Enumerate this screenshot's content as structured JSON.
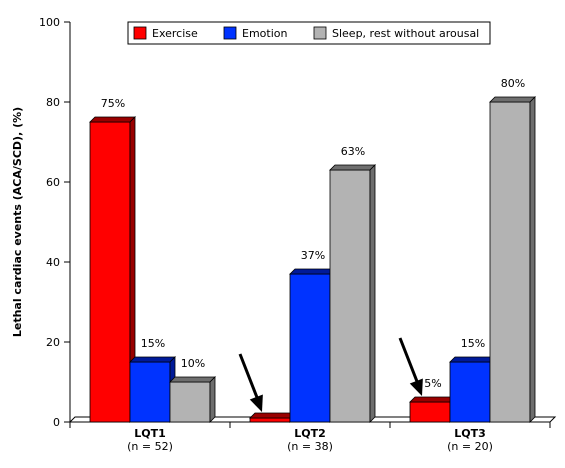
{
  "chart_data": {
    "type": "bar",
    "ylabel": "Lethal cardiac events (ACA/SCD), (%)",
    "xlabel": "",
    "ylim": [
      0,
      100
    ],
    "yticks": [
      0,
      20,
      40,
      60,
      80,
      100
    ],
    "grid": false,
    "legend_position": "top",
    "categories": [
      {
        "label": "LQT1",
        "sublabel": "(n = 52)"
      },
      {
        "label": "LQT2",
        "sublabel": "(n = 38)"
      },
      {
        "label": "LQT3",
        "sublabel": "(n = 20)"
      }
    ],
    "series": [
      {
        "name": "Exercise",
        "color": "#ff0000",
        "dark": "#990000",
        "values": [
          75,
          1,
          5
        ],
        "labels": [
          "75%",
          "",
          "5%"
        ]
      },
      {
        "name": "Emotion",
        "color": "#0033ff",
        "dark": "#001a99",
        "values": [
          15,
          37,
          15
        ],
        "labels": [
          "15%",
          "37%",
          "15%"
        ]
      },
      {
        "name": "Sleep, rest without arousal",
        "color": "#b3b3b3",
        "dark": "#6e6e6e",
        "values": [
          10,
          63,
          80
        ],
        "labels": [
          "10%",
          "63%",
          "80%"
        ]
      }
    ],
    "annotations": [
      {
        "type": "arrow",
        "category": 1,
        "series": 0,
        "icon": "arrow-down-right-icon"
      },
      {
        "type": "arrow",
        "category": 2,
        "series": 0,
        "icon": "arrow-down-right-icon"
      }
    ]
  }
}
